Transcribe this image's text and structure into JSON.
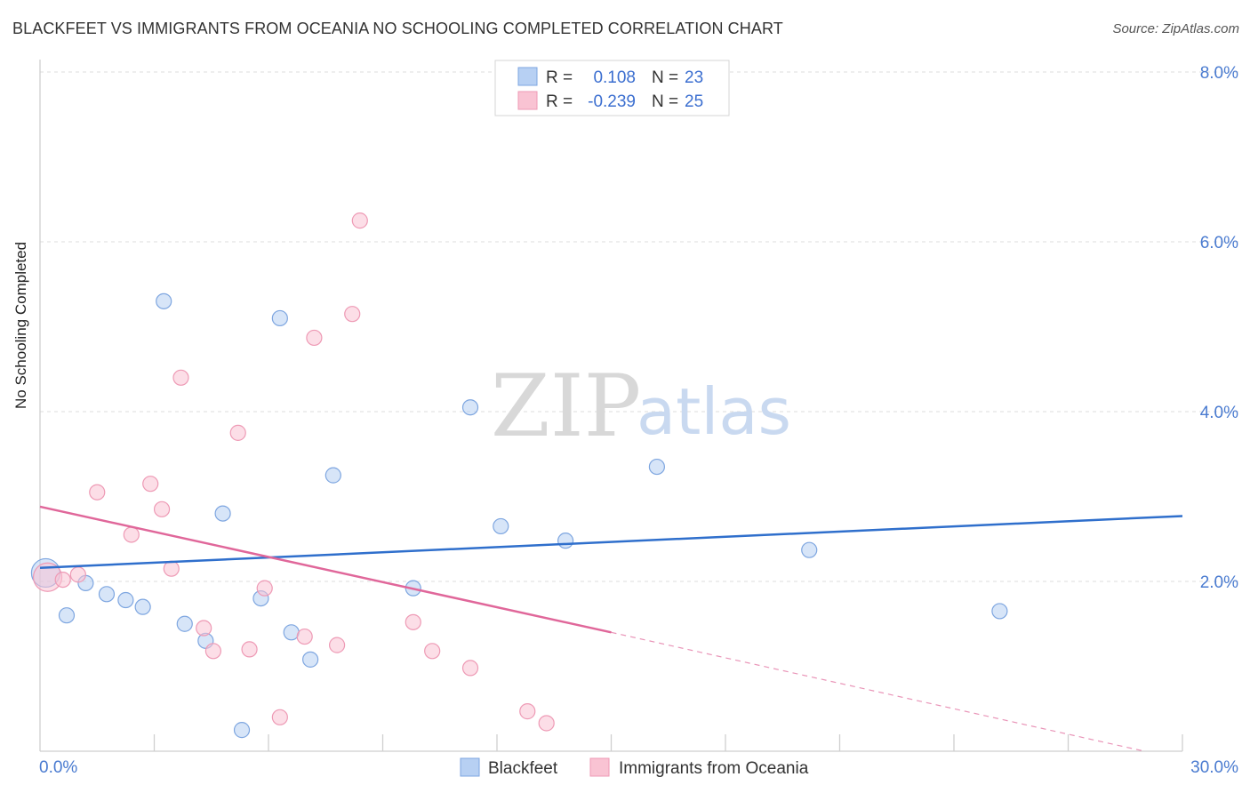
{
  "title": "BLACKFEET VS IMMIGRANTS FROM OCEANIA NO SCHOOLING COMPLETED CORRELATION CHART",
  "source": "Source: ZipAtlas.com",
  "watermark": {
    "zip": "ZIP",
    "atlas": "atlas"
  },
  "colors": {
    "blue": "#2f6fcc",
    "pink": "#e0679a",
    "blue_fill": "#b7d0f3",
    "pink_fill": "#f9c3d3"
  },
  "legend": {
    "rows": [
      {
        "r_label": "R =",
        "r_value": "0.108",
        "n_label": "N =",
        "n_value": "23"
      },
      {
        "r_label": "R =",
        "r_value": "-0.239",
        "n_label": "N =",
        "n_value": "25"
      }
    ]
  },
  "chart_data": {
    "type": "scatter",
    "title": "BLACKFEET VS IMMIGRANTS FROM OCEANIA NO SCHOOLING COMPLETED CORRELATION CHART",
    "xlabel": "",
    "ylabel": "No Schooling Completed",
    "xlim": [
      0,
      30
    ],
    "ylim": [
      0,
      8
    ],
    "x_tick_labels": [
      "0.0%",
      "30.0%"
    ],
    "y_ticks": [
      2,
      4,
      6,
      8
    ],
    "y_tick_labels": [
      "2.0%",
      "4.0%",
      "6.0%",
      "8.0%"
    ],
    "grid": true,
    "legend_position": "top-center",
    "series": [
      {
        "name": "Blackfeet",
        "color": "#2f6fcc",
        "points": [
          [
            0.15,
            2.1
          ],
          [
            0.7,
            1.6
          ],
          [
            1.2,
            1.98
          ],
          [
            1.75,
            1.85
          ],
          [
            2.25,
            1.78
          ],
          [
            2.7,
            1.7
          ],
          [
            3.25,
            5.3
          ],
          [
            3.8,
            1.5
          ],
          [
            4.35,
            1.3
          ],
          [
            4.8,
            2.8
          ],
          [
            5.3,
            0.25
          ],
          [
            5.8,
            1.8
          ],
          [
            6.3,
            5.1
          ],
          [
            6.6,
            1.4
          ],
          [
            7.1,
            1.08
          ],
          [
            7.7,
            3.25
          ],
          [
            9.8,
            1.92
          ],
          [
            11.3,
            4.05
          ],
          [
            12.1,
            2.65
          ],
          [
            13.8,
            2.48
          ],
          [
            16.2,
            3.35
          ],
          [
            20.2,
            2.37
          ],
          [
            25.2,
            1.65
          ]
        ],
        "trend": {
          "x": [
            0,
            30
          ],
          "y": [
            2.16,
            2.77
          ],
          "style": "solid"
        }
      },
      {
        "name": "Immigrants from Oceania",
        "color": "#e0679a",
        "points": [
          [
            0.2,
            2.05
          ],
          [
            0.6,
            2.02
          ],
          [
            1.0,
            2.08
          ],
          [
            1.5,
            3.05
          ],
          [
            2.4,
            2.55
          ],
          [
            3.2,
            2.85
          ],
          [
            2.9,
            3.15
          ],
          [
            3.45,
            2.15
          ],
          [
            3.7,
            4.4
          ],
          [
            4.3,
            1.45
          ],
          [
            4.55,
            1.18
          ],
          [
            5.2,
            3.75
          ],
          [
            5.5,
            1.2
          ],
          [
            5.9,
            1.92
          ],
          [
            6.3,
            0.4
          ],
          [
            6.95,
            1.35
          ],
          [
            7.2,
            4.87
          ],
          [
            7.8,
            1.25
          ],
          [
            8.2,
            5.15
          ],
          [
            8.4,
            6.25
          ],
          [
            9.8,
            1.52
          ],
          [
            10.3,
            1.18
          ],
          [
            11.3,
            0.98
          ],
          [
            12.8,
            0.47
          ],
          [
            13.3,
            0.33
          ]
        ],
        "trend": {
          "x": [
            0,
            15
          ],
          "y": [
            2.88,
            1.4
          ],
          "style": "solid"
        },
        "trend_extension": {
          "x": [
            15,
            29
          ],
          "y": [
            1.4,
            0.0
          ],
          "style": "dashed"
        }
      }
    ]
  }
}
